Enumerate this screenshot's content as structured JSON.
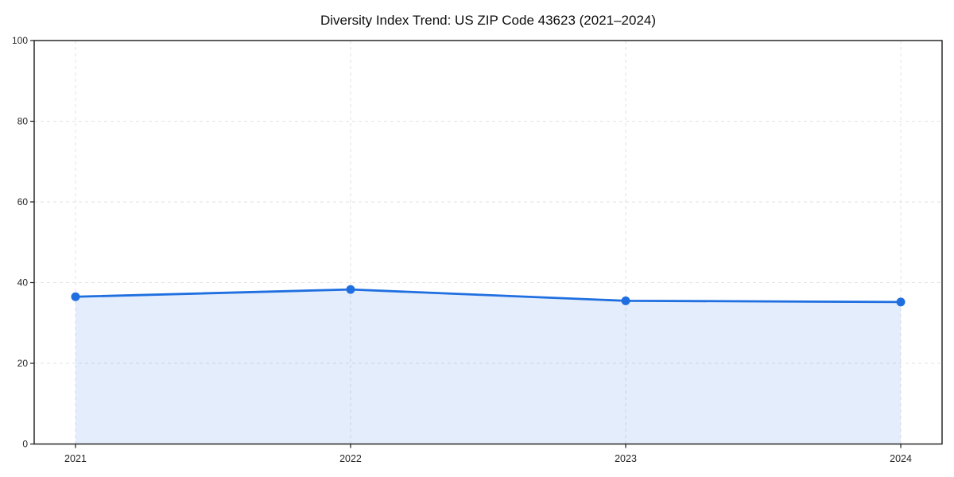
{
  "chart_data": {
    "type": "area",
    "title": "Diversity Index Trend: US ZIP Code 43623 (2021–2024)",
    "xlabel": "",
    "ylabel": "",
    "categories": [
      "2021",
      "2022",
      "2023",
      "2024"
    ],
    "series": [
      {
        "name": "Diversity Index",
        "values": [
          36.5,
          38.3,
          35.5,
          35.2
        ]
      }
    ],
    "ylim": [
      0,
      100
    ],
    "y_ticks": [
      0,
      20,
      40,
      60,
      80,
      100
    ],
    "x_ticks": [
      "2021",
      "2022",
      "2023",
      "2024"
    ],
    "grid": {
      "visible": true,
      "style": "dashed",
      "axes": "both"
    },
    "legend": {
      "visible": false
    },
    "colors": {
      "line": "#1f6fe0",
      "marker": "#1f6fe0",
      "fill": "rgba(31,111,224,0.12)",
      "grid": "#e2e2e2",
      "spine": "#1a1a1a",
      "tick_label": "#262626",
      "title": "#0d0d0d",
      "background": "#ffffff"
    }
  }
}
